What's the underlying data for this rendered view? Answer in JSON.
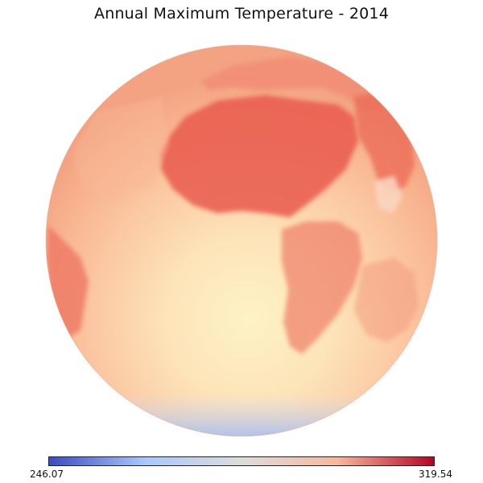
{
  "title": "Annual Maximum Temperature - 2014",
  "colorbar": {
    "min_label": "246.07",
    "max_label": "319.54",
    "min": 246.07,
    "max": 319.54,
    "colormap": "coolwarm",
    "colors": [
      "#3b4cc0",
      "#aac7fd",
      "#dddcdc",
      "#f7b89c",
      "#b40426"
    ]
  },
  "map": {
    "projection": "orthographic"
  }
}
